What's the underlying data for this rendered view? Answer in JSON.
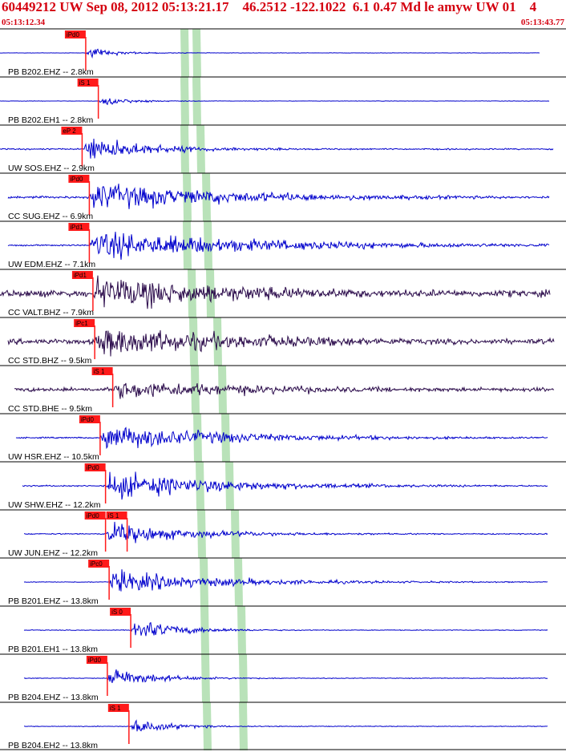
{
  "header": {
    "title": "60449212 UW Sep 08, 2012 05:13:21.17    46.2512 -122.1022  6.1 0.47 Md le amyw UW 01    4",
    "start_time": "05:13:12.34",
    "end_time": "05:13:43.77"
  },
  "colors": {
    "accent": "#d4000f",
    "pick_bg": "#ff1a1a",
    "band": "#b9e2b9",
    "trace_blue": "#0000cc",
    "trace_dark": "#2a0a4a",
    "divider": "#000000"
  },
  "chart_data": {
    "type": "line",
    "xlabel": "",
    "ylabel": "",
    "xlim": [
      "05:13:12.34",
      "05:13:43.77"
    ],
    "grid": false,
    "traces": [
      {
        "label": "PB B202.EHZ -- 2.8km",
        "distance_km": 2.8,
        "color": "dark-blue",
        "pick": "iPd0",
        "pick_time": "05:13:17.1"
      },
      {
        "label": "PB B202.EH1 -- 2.8km",
        "distance_km": 2.8,
        "color": "dark-blue",
        "pick": "iS 1",
        "pick_time": "05:13:17.8"
      },
      {
        "label": "UW SOS.EHZ -- 2.9km",
        "distance_km": 2.9,
        "color": "dark-blue",
        "pick": "eP 2",
        "pick_time": "05:13:16.9"
      },
      {
        "label": "CC SUG.EHZ -- 6.9km",
        "distance_km": 6.9,
        "color": "dark-blue",
        "pick": "iPd0",
        "pick_time": "05:13:17.3"
      },
      {
        "label": "UW EDM.EHZ -- 7.1km",
        "distance_km": 7.1,
        "color": "dark-blue",
        "pick": "iPd1",
        "pick_time": "05:13:17.3"
      },
      {
        "label": "CC VALT.BHZ -- 7.9km",
        "distance_km": 7.9,
        "color": "dark-purple",
        "pick": "iPd1",
        "pick_time": "05:13:17.5"
      },
      {
        "label": "CC STD.BHZ -- 9.5km",
        "distance_km": 9.5,
        "color": "dark-purple",
        "pick": "iPc1",
        "pick_time": "05:13:17.6"
      },
      {
        "label": "CC STD.BHE -- 9.5km",
        "distance_km": 9.5,
        "color": "dark-purple",
        "pick": "iS 1",
        "pick_time": "05:13:18.6"
      },
      {
        "label": "UW HSR.EHZ -- 10.5km",
        "distance_km": 10.5,
        "color": "dark-blue",
        "pick": "iPd0",
        "pick_time": "05:13:17.9"
      },
      {
        "label": "UW SHW.EHZ -- 12.2km",
        "distance_km": 12.2,
        "color": "dark-blue",
        "pick": "iPd0",
        "pick_time": "05:13:18.2"
      },
      {
        "label": "UW JUN.EHZ -- 12.2km",
        "distance_km": 12.2,
        "color": "dark-blue",
        "pick": [
          "iPd0",
          "iS 1"
        ],
        "pick_time": [
          "05:13:18.2",
          "05:13:19.4"
        ]
      },
      {
        "label": "PB B201.EHZ -- 13.8km",
        "distance_km": 13.8,
        "color": "dark-blue",
        "pick": "iPc0",
        "pick_time": "05:13:18.4"
      },
      {
        "label": "PB B201.EH1 -- 13.8km",
        "distance_km": 13.8,
        "color": "dark-blue",
        "pick": "iS 0",
        "pick_time": "05:13:19.6"
      },
      {
        "label": "PB B204.EHZ -- 13.8km",
        "distance_km": 13.8,
        "color": "dark-blue",
        "pick": "iPd0",
        "pick_time": "05:13:18.3"
      },
      {
        "label": "PB B204.EH2 -- 13.8km",
        "distance_km": 13.8,
        "color": "dark-blue",
        "pick": "iS 1",
        "pick_time": "05:13:19.5"
      }
    ]
  }
}
